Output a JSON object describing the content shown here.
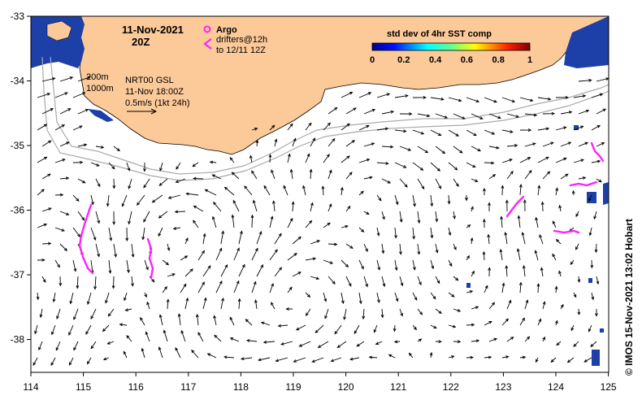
{
  "header": {
    "date": "11-Nov-2021",
    "time": "20Z",
    "argo_label": "Argo",
    "drifters_label": "drifters@12h",
    "drifters_range": "to 12/11 12Z"
  },
  "info": {
    "depth_200": "200m",
    "depth_1000": "1000m",
    "product": "NRT00 GSL",
    "valid_time": "11-Nov 18:00Z",
    "scale_label": "0.5m/s (1kt 24h)"
  },
  "colorbar": {
    "title": "std dev of 4hr SST comp",
    "ticks": [
      "0",
      "0.2",
      "0.4",
      "0.6",
      "0.8",
      "1"
    ]
  },
  "axes": {
    "x_ticks": [
      "114",
      "115",
      "116",
      "117",
      "118",
      "119",
      "120",
      "121",
      "122",
      "123",
      "124",
      "125"
    ],
    "y_ticks": [
      "-33",
      "-34",
      "-35",
      "-36",
      "-37",
      "-38"
    ]
  },
  "credit": "© IMOS 15-Nov-2021 13:02 Hobart",
  "colors": {
    "land": "#fcc999",
    "drifter": "#ff22ff",
    "sst_patch": "#1c3fa8",
    "isobath": "#aaaaaa"
  }
}
